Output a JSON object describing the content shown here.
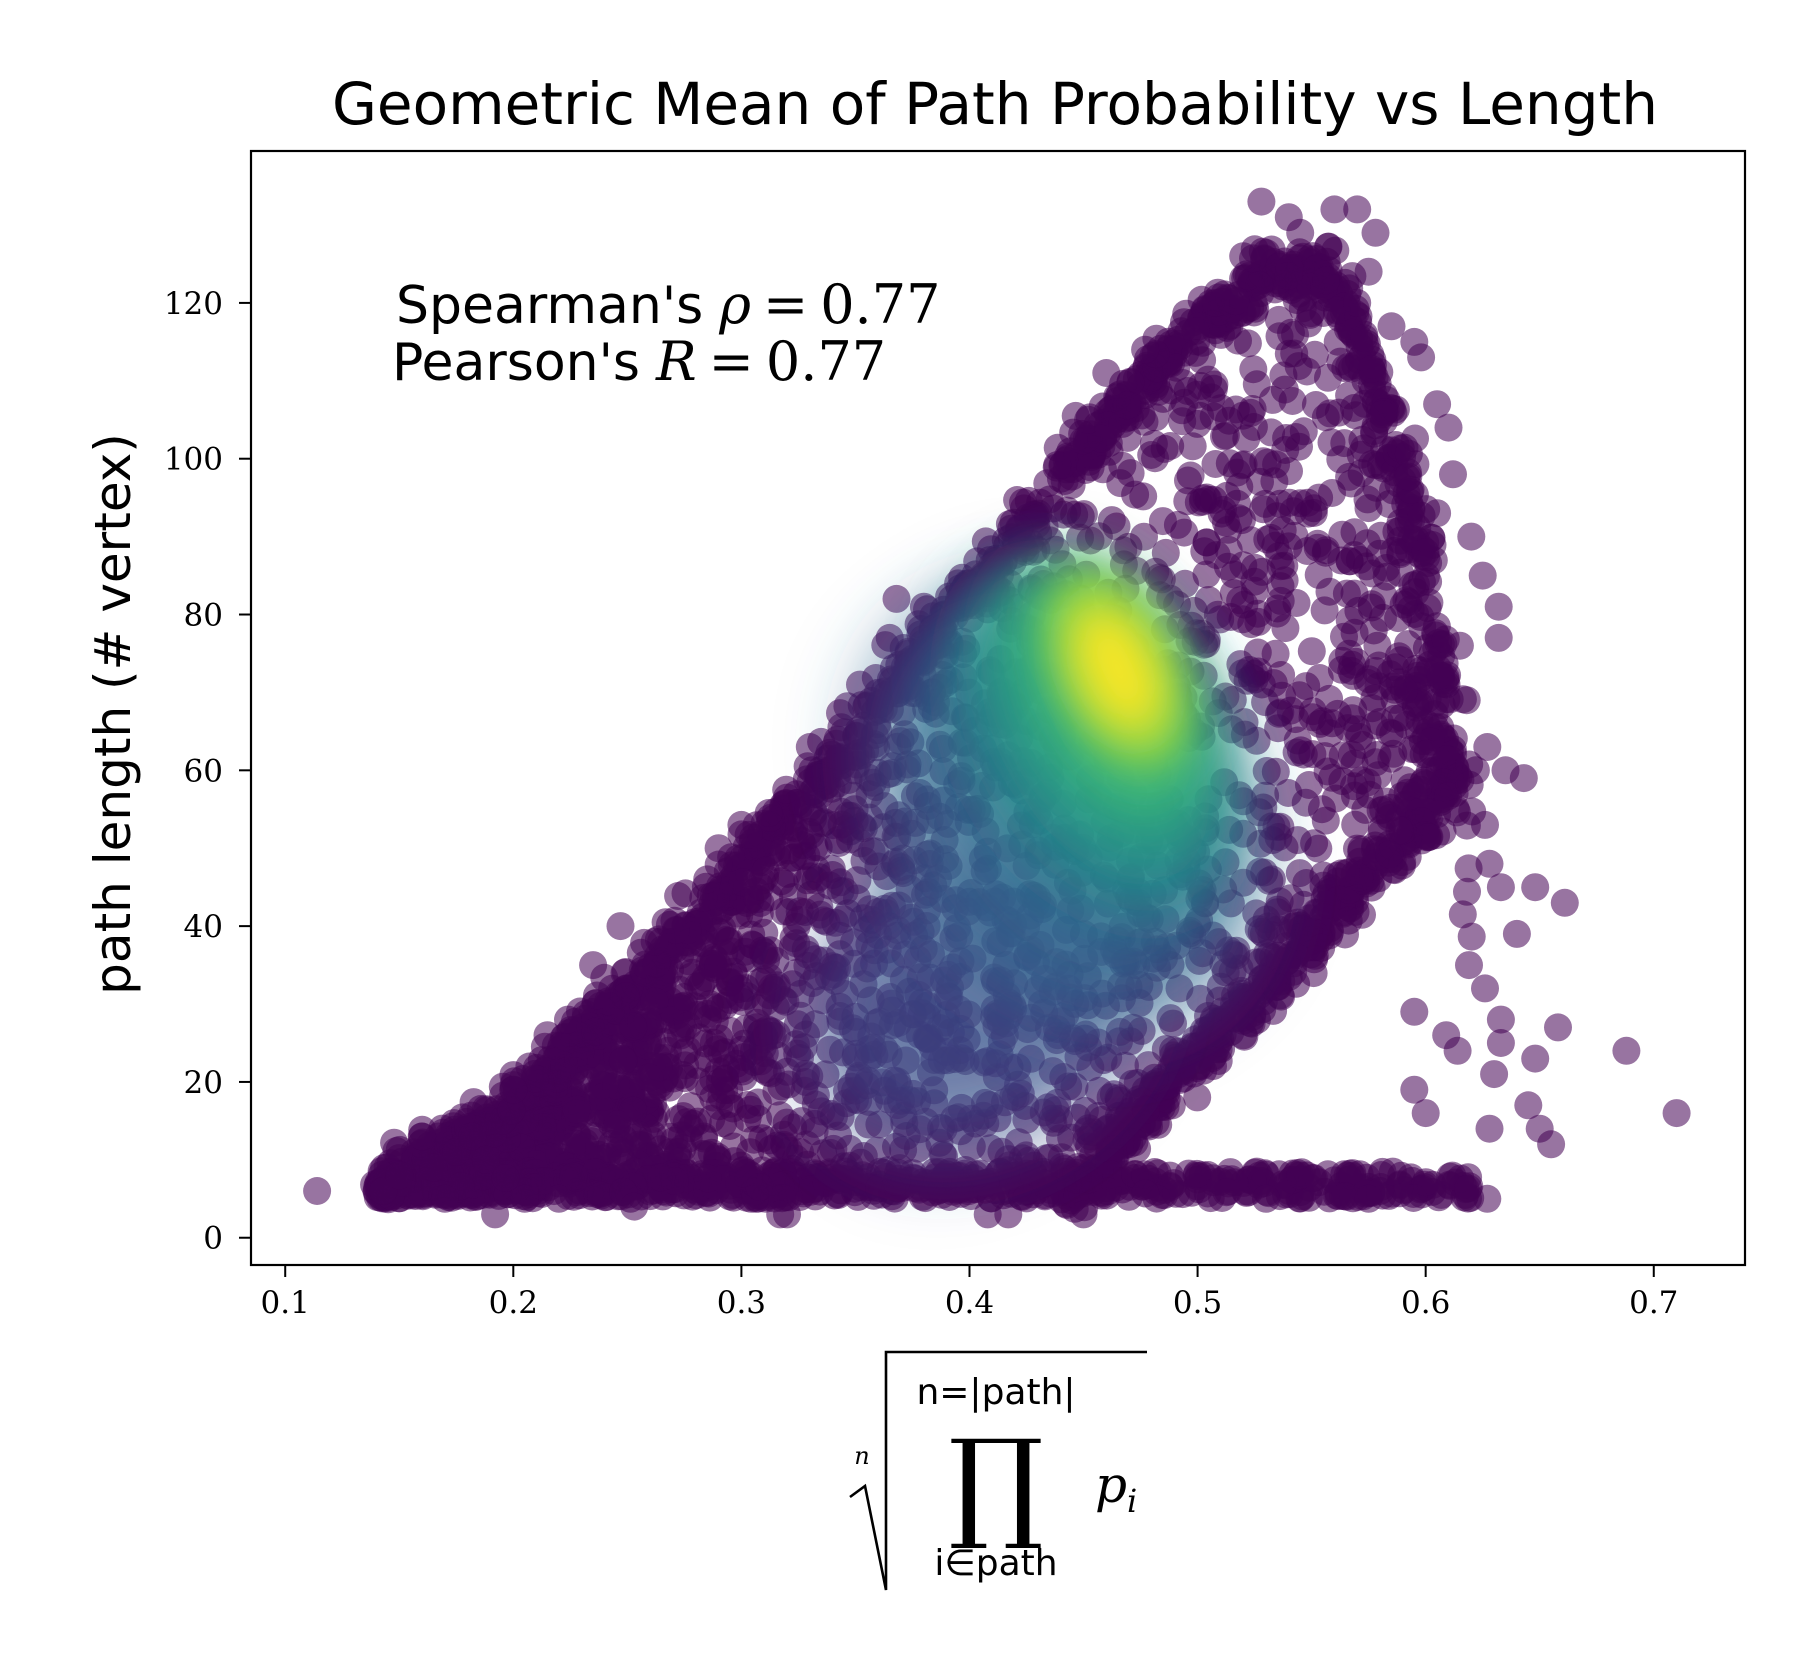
{
  "chart_data": {
    "type": "scatter",
    "title": "Geometric Mean of Path Probability vs Length",
    "ylabel": "path length (# vertex)",
    "xlabel": {
      "root_index": "n",
      "upper_limit": "n=|path|",
      "product_symbol": "∏",
      "lower_limit": "i∈path",
      "term": "p",
      "term_subscript": "i"
    },
    "xlim": [
      0.085,
      0.74
    ],
    "ylim": [
      -3.5,
      139.5
    ],
    "xticks": [
      "0.1",
      "0.2",
      "0.3",
      "0.4",
      "0.5",
      "0.6",
      "0.7"
    ],
    "yticks": [
      "0",
      "20",
      "40",
      "60",
      "80",
      "100",
      "120"
    ],
    "grid": false,
    "colormap": "viridis",
    "point_color": "#440154",
    "point_alpha": 0.55,
    "annotations": {
      "spearman": {
        "label": "Spearman's",
        "symbol": "ρ",
        "equals": "=",
        "value": "0.77"
      },
      "pearson": {
        "label": "Pearson's",
        "symbol": "R",
        "equals": "=",
        "value": "0.77"
      }
    },
    "density_peak": {
      "x": 0.465,
      "y": 73
    },
    "outlier_points": [
      {
        "x": 0.114,
        "y": 6
      },
      {
        "x": 0.143,
        "y": 6
      },
      {
        "x": 0.15,
        "y": 8
      },
      {
        "x": 0.16,
        "y": 13
      },
      {
        "x": 0.165,
        "y": 9
      },
      {
        "x": 0.17,
        "y": 5
      },
      {
        "x": 0.175,
        "y": 11
      },
      {
        "x": 0.182,
        "y": 13
      },
      {
        "x": 0.188,
        "y": 10
      },
      {
        "x": 0.192,
        "y": 3
      },
      {
        "x": 0.2,
        "y": 19
      },
      {
        "x": 0.215,
        "y": 26
      },
      {
        "x": 0.224,
        "y": 28
      },
      {
        "x": 0.235,
        "y": 35
      },
      {
        "x": 0.247,
        "y": 40
      },
      {
        "x": 0.262,
        "y": 38
      },
      {
        "x": 0.285,
        "y": 46
      },
      {
        "x": 0.29,
        "y": 50
      },
      {
        "x": 0.3,
        "y": 53
      },
      {
        "x": 0.33,
        "y": 63
      },
      {
        "x": 0.352,
        "y": 71
      },
      {
        "x": 0.365,
        "y": 77
      },
      {
        "x": 0.368,
        "y": 82
      },
      {
        "x": 0.38,
        "y": 81
      },
      {
        "x": 0.395,
        "y": 84
      },
      {
        "x": 0.452,
        "y": 105
      },
      {
        "x": 0.46,
        "y": 111
      },
      {
        "x": 0.477,
        "y": 114
      },
      {
        "x": 0.508,
        "y": 120
      },
      {
        "x": 0.52,
        "y": 126
      },
      {
        "x": 0.528,
        "y": 133
      },
      {
        "x": 0.54,
        "y": 131
      },
      {
        "x": 0.545,
        "y": 129
      },
      {
        "x": 0.56,
        "y": 132
      },
      {
        "x": 0.57,
        "y": 132
      },
      {
        "x": 0.578,
        "y": 129
      },
      {
        "x": 0.575,
        "y": 124
      },
      {
        "x": 0.57,
        "y": 120
      },
      {
        "x": 0.585,
        "y": 117
      },
      {
        "x": 0.595,
        "y": 115
      },
      {
        "x": 0.598,
        "y": 113
      },
      {
        "x": 0.605,
        "y": 107
      },
      {
        "x": 0.61,
        "y": 104
      },
      {
        "x": 0.612,
        "y": 98
      },
      {
        "x": 0.605,
        "y": 93
      },
      {
        "x": 0.62,
        "y": 90
      },
      {
        "x": 0.625,
        "y": 85
      },
      {
        "x": 0.632,
        "y": 81
      },
      {
        "x": 0.632,
        "y": 77
      },
      {
        "x": 0.615,
        "y": 76
      },
      {
        "x": 0.618,
        "y": 69
      },
      {
        "x": 0.627,
        "y": 63
      },
      {
        "x": 0.622,
        "y": 60
      },
      {
        "x": 0.635,
        "y": 60
      },
      {
        "x": 0.643,
        "y": 59
      },
      {
        "x": 0.626,
        "y": 53
      },
      {
        "x": 0.628,
        "y": 48
      },
      {
        "x": 0.633,
        "y": 45
      },
      {
        "x": 0.648,
        "y": 45
      },
      {
        "x": 0.661,
        "y": 43
      },
      {
        "x": 0.64,
        "y": 39
      },
      {
        "x": 0.619,
        "y": 35
      },
      {
        "x": 0.626,
        "y": 32
      },
      {
        "x": 0.595,
        "y": 29
      },
      {
        "x": 0.609,
        "y": 26
      },
      {
        "x": 0.614,
        "y": 24
      },
      {
        "x": 0.633,
        "y": 28
      },
      {
        "x": 0.633,
        "y": 25
      },
      {
        "x": 0.658,
        "y": 27
      },
      {
        "x": 0.648,
        "y": 23
      },
      {
        "x": 0.63,
        "y": 21
      },
      {
        "x": 0.595,
        "y": 19
      },
      {
        "x": 0.6,
        "y": 16
      },
      {
        "x": 0.628,
        "y": 14
      },
      {
        "x": 0.645,
        "y": 17
      },
      {
        "x": 0.65,
        "y": 14
      },
      {
        "x": 0.655,
        "y": 12
      },
      {
        "x": 0.688,
        "y": 24
      },
      {
        "x": 0.71,
        "y": 16
      },
      {
        "x": 0.627,
        "y": 5
      },
      {
        "x": 0.58,
        "y": 6
      },
      {
        "x": 0.575,
        "y": 5
      },
      {
        "x": 0.545,
        "y": 8
      },
      {
        "x": 0.53,
        "y": 5
      },
      {
        "x": 0.45,
        "y": 3
      },
      {
        "x": 0.417,
        "y": 3
      },
      {
        "x": 0.408,
        "y": 3
      },
      {
        "x": 0.32,
        "y": 3
      },
      {
        "x": 0.317,
        "y": 3
      },
      {
        "x": 0.253,
        "y": 4
      },
      {
        "x": 0.22,
        "y": 5
      },
      {
        "x": 0.205,
        "y": 5
      }
    ]
  }
}
